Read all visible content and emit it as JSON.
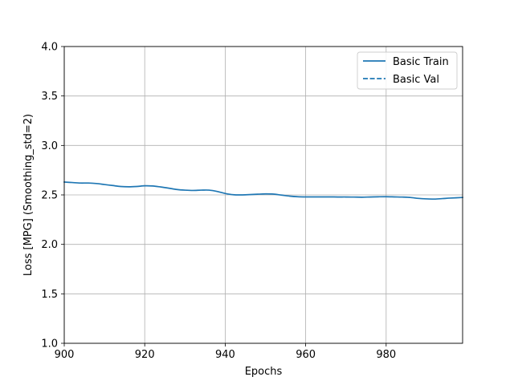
{
  "chart_data": {
    "type": "line",
    "title": "",
    "xlabel": "Epochs",
    "ylabel": "Loss [MPG] (Smoothing_std=2)",
    "xlim": [
      900,
      999
    ],
    "ylim": [
      1.0,
      4.0
    ],
    "xticks": [
      900,
      920,
      940,
      960,
      980
    ],
    "xtick_labels": [
      "900",
      "920",
      "940",
      "960",
      "980"
    ],
    "yticks": [
      1.0,
      1.5,
      2.0,
      2.5,
      3.0,
      3.5,
      4.0
    ],
    "ytick_labels": [
      "1.0",
      "1.5",
      "2.0",
      "2.5",
      "3.0",
      "3.5",
      "4.0"
    ],
    "grid": true,
    "legend_position": "top-right",
    "series": [
      {
        "name": "Basic Train",
        "style": "solid",
        "color": "#1f77b4",
        "x": [
          900,
          902,
          904,
          906,
          908,
          910,
          912,
          914,
          916,
          918,
          920,
          922,
          924,
          926,
          928,
          930,
          932,
          934,
          936,
          938,
          940,
          942,
          944,
          946,
          948,
          950,
          952,
          954,
          956,
          958,
          960,
          962,
          964,
          966,
          968,
          970,
          972,
          974,
          976,
          978,
          980,
          982,
          984,
          986,
          988,
          990,
          992,
          994,
          996,
          999
        ],
        "y": [
          2.63,
          2.625,
          2.62,
          2.62,
          2.615,
          2.605,
          2.595,
          2.585,
          2.582,
          2.585,
          2.592,
          2.59,
          2.58,
          2.568,
          2.555,
          2.548,
          2.545,
          2.548,
          2.548,
          2.535,
          2.515,
          2.502,
          2.5,
          2.503,
          2.507,
          2.51,
          2.508,
          2.498,
          2.488,
          2.482,
          2.48,
          2.48,
          2.48,
          2.48,
          2.479,
          2.479,
          2.478,
          2.477,
          2.479,
          2.481,
          2.482,
          2.48,
          2.478,
          2.474,
          2.465,
          2.46,
          2.458,
          2.463,
          2.468,
          2.474
        ]
      },
      {
        "name": "Basic Val",
        "style": "dashed",
        "color": "#1f77b4",
        "x": [],
        "y": []
      }
    ]
  }
}
